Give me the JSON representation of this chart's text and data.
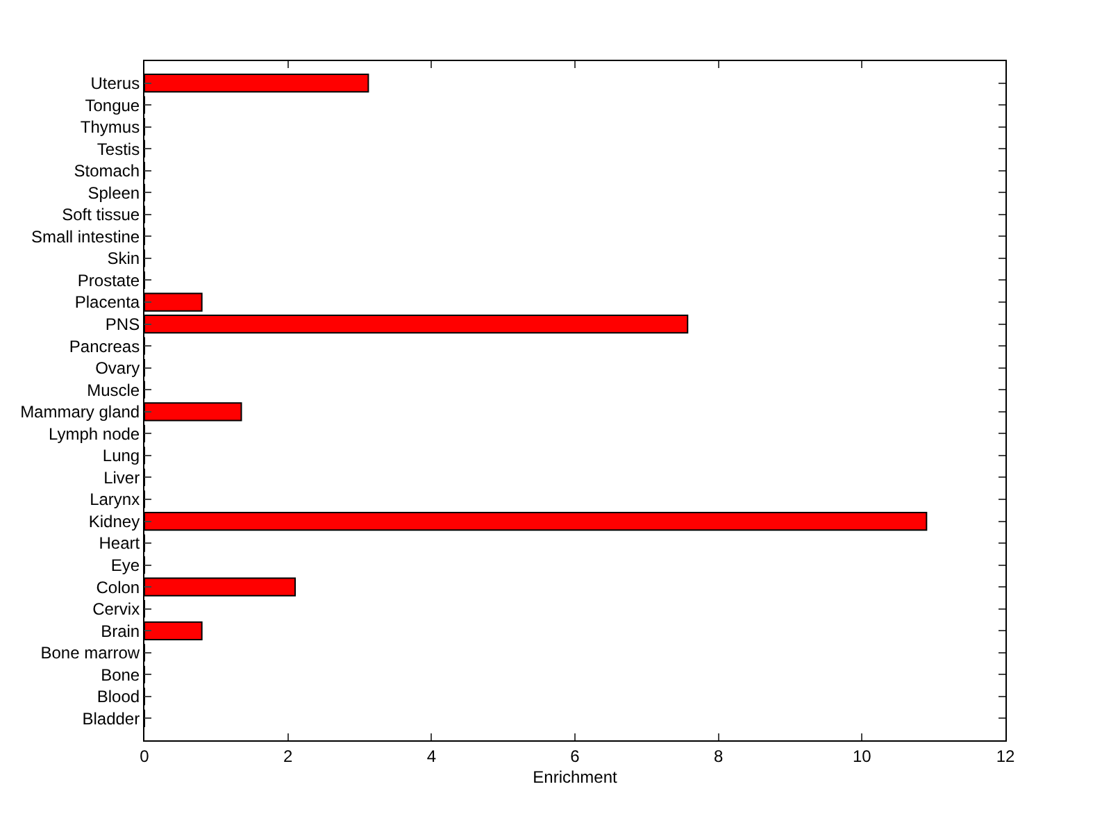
{
  "chart_data": {
    "type": "bar",
    "orientation": "horizontal",
    "xlabel": "Enrichment",
    "categories": [
      "Uterus",
      "Tongue",
      "Thymus",
      "Testis",
      "Stomach",
      "Spleen",
      "Soft tissue",
      "Small intestine",
      "Skin",
      "Prostate",
      "Placenta",
      "PNS",
      "Pancreas",
      "Ovary",
      "Muscle",
      "Mammary gland",
      "Lymph node",
      "Lung",
      "Liver",
      "Larynx",
      "Kidney",
      "Heart",
      "Eye",
      "Colon",
      "Cervix",
      "Brain",
      "Bone marrow",
      "Bone",
      "Blood",
      "Bladder"
    ],
    "values": [
      3.12,
      0,
      0,
      0,
      0,
      0,
      0,
      0,
      0,
      0,
      0.8,
      7.57,
      0,
      0,
      0,
      1.35,
      0,
      0,
      0,
      0,
      10.9,
      0,
      0,
      2.1,
      0,
      0.8,
      0,
      0,
      0,
      0
    ],
    "color": "#ff0000",
    "xlim": [
      0,
      12
    ],
    "xticks": [
      0,
      2,
      4,
      6,
      8,
      10,
      12
    ]
  }
}
